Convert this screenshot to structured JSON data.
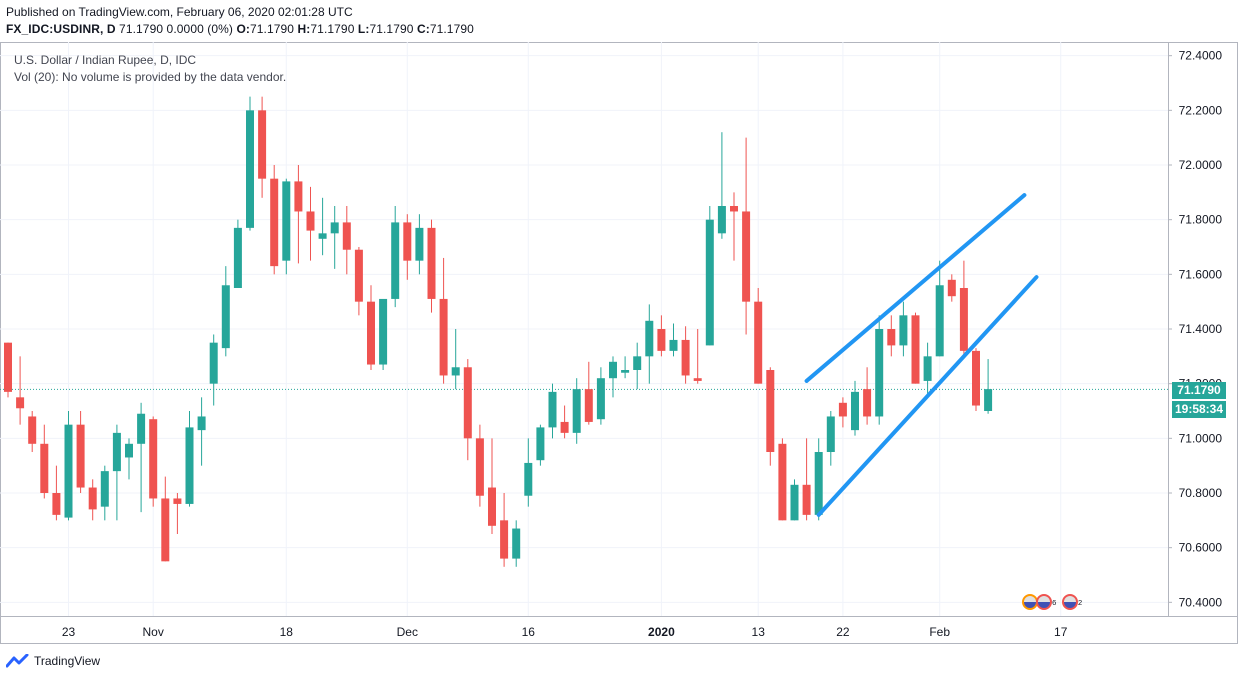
{
  "header": {
    "published": "Published on TradingView.com, February 06, 2020 02:01:28 UTC",
    "symbol": "FX_IDC:USDINR, D",
    "change": "71.1790 0.0000 (0%)",
    "o_label": "O:",
    "o": "71.1790",
    "h_label": "H:",
    "h": "71.1790",
    "l_label": "L:",
    "l": "71.1790",
    "c_label": "C:",
    "c": "71.1790"
  },
  "legend": {
    "title": "U.S. Dollar / Indian Rupee, D, IDC",
    "volume": "Vol (20): No volume is provided by the data vendor."
  },
  "price_tag": "71.1790",
  "countdown": "19:58:34",
  "footer": {
    "brand": "TradingView"
  },
  "events": [
    {
      "count_a": "5",
      "count_b": "6"
    },
    {
      "count_a": "2"
    }
  ],
  "colors": {
    "up": "#26a69a",
    "down": "#ef5350",
    "trendline": "#2196f3",
    "grid": "#f0f3fa"
  },
  "chart_data": {
    "type": "candlestick",
    "y_axis": {
      "min": 70.35,
      "max": 72.45,
      "ticks": [
        "70.4000",
        "70.6000",
        "70.8000",
        "71.0000",
        "71.2000",
        "71.4000",
        "71.6000",
        "71.8000",
        "72.0000",
        "72.2000",
        "72.4000"
      ],
      "position": "right"
    },
    "x_axis": {
      "ticks": [
        {
          "label": "23",
          "date": "2019-10-23"
        },
        {
          "label": "Nov",
          "date": "2019-11-01"
        },
        {
          "label": "18",
          "date": "2019-11-18"
        },
        {
          "label": "Dec",
          "date": "2019-12-02"
        },
        {
          "label": "16",
          "date": "2019-12-16"
        },
        {
          "label": "2020",
          "date": "2020-01-01"
        },
        {
          "label": "13",
          "date": "2020-01-13"
        },
        {
          "label": "22",
          "date": "2020-01-22"
        },
        {
          "label": "Feb",
          "date": "2020-02-03"
        },
        {
          "label": "17",
          "date": "2020-02-17"
        }
      ]
    },
    "last_price": 71.179,
    "grid": true,
    "candles": [
      {
        "d": "2019-10-16",
        "o": 71.35,
        "h": 71.35,
        "l": 71.15,
        "c": 71.17
      },
      {
        "d": "2019-10-17",
        "o": 71.15,
        "h": 71.3,
        "l": 71.05,
        "c": 71.11
      },
      {
        "d": "2019-10-18",
        "o": 71.08,
        "h": 71.1,
        "l": 70.95,
        "c": 70.98
      },
      {
        "d": "2019-10-21",
        "o": 70.98,
        "h": 71.05,
        "l": 70.78,
        "c": 70.8
      },
      {
        "d": "2019-10-22",
        "o": 70.8,
        "h": 70.9,
        "l": 70.7,
        "c": 70.72
      },
      {
        "d": "2019-10-23",
        "o": 70.71,
        "h": 71.1,
        "l": 70.7,
        "c": 71.05
      },
      {
        "d": "2019-10-24",
        "o": 71.05,
        "h": 71.1,
        "l": 70.8,
        "c": 70.82
      },
      {
        "d": "2019-10-25",
        "o": 70.82,
        "h": 70.85,
        "l": 70.7,
        "c": 70.74
      },
      {
        "d": "2019-10-28",
        "o": 70.75,
        "h": 70.9,
        "l": 70.7,
        "c": 70.88
      },
      {
        "d": "2019-10-29",
        "o": 70.88,
        "h": 71.05,
        "l": 70.7,
        "c": 71.02
      },
      {
        "d": "2019-10-30",
        "o": 70.93,
        "h": 71.0,
        "l": 70.85,
        "c": 70.98
      },
      {
        "d": "2019-10-31",
        "o": 70.98,
        "h": 71.13,
        "l": 70.73,
        "c": 71.09
      },
      {
        "d": "2019-11-01",
        "o": 71.07,
        "h": 71.08,
        "l": 70.75,
        "c": 70.78
      },
      {
        "d": "2019-11-04",
        "o": 70.78,
        "h": 70.86,
        "l": 70.55,
        "c": 70.55
      },
      {
        "d": "2019-11-05",
        "o": 70.78,
        "h": 70.8,
        "l": 70.65,
        "c": 70.76
      },
      {
        "d": "2019-11-06",
        "o": 70.76,
        "h": 71.1,
        "l": 70.75,
        "c": 71.04
      },
      {
        "d": "2019-11-07",
        "o": 71.03,
        "h": 71.15,
        "l": 70.9,
        "c": 71.08
      },
      {
        "d": "2019-11-08",
        "o": 71.2,
        "h": 71.38,
        "l": 71.12,
        "c": 71.35
      },
      {
        "d": "2019-11-11",
        "o": 71.33,
        "h": 71.63,
        "l": 71.3,
        "c": 71.56
      },
      {
        "d": "2019-11-12",
        "o": 71.55,
        "h": 71.8,
        "l": 71.55,
        "c": 71.77
      },
      {
        "d": "2019-11-13",
        "o": 71.77,
        "h": 72.25,
        "l": 71.76,
        "c": 72.2
      },
      {
        "d": "2019-11-14",
        "o": 72.2,
        "h": 72.25,
        "l": 71.88,
        "c": 71.95
      },
      {
        "d": "2019-11-15",
        "o": 71.95,
        "h": 72.0,
        "l": 71.6,
        "c": 71.63
      },
      {
        "d": "2019-11-18",
        "o": 71.65,
        "h": 71.95,
        "l": 71.6,
        "c": 71.94
      },
      {
        "d": "2019-11-19",
        "o": 71.94,
        "h": 72.0,
        "l": 71.64,
        "c": 71.83
      },
      {
        "d": "2019-11-20",
        "o": 71.83,
        "h": 71.92,
        "l": 71.65,
        "c": 71.76
      },
      {
        "d": "2019-11-21",
        "o": 71.73,
        "h": 71.88,
        "l": 71.67,
        "c": 71.75
      },
      {
        "d": "2019-11-22",
        "o": 71.75,
        "h": 71.85,
        "l": 71.62,
        "c": 71.79
      },
      {
        "d": "2019-11-25",
        "o": 71.79,
        "h": 71.85,
        "l": 71.6,
        "c": 71.69
      },
      {
        "d": "2019-11-26",
        "o": 71.69,
        "h": 71.7,
        "l": 71.45,
        "c": 71.5
      },
      {
        "d": "2019-11-27",
        "o": 71.5,
        "h": 71.56,
        "l": 71.25,
        "c": 71.27
      },
      {
        "d": "2019-11-28",
        "o": 71.27,
        "h": 71.5,
        "l": 71.25,
        "c": 71.51
      },
      {
        "d": "2019-11-29",
        "o": 71.51,
        "h": 71.85,
        "l": 71.48,
        "c": 71.79
      },
      {
        "d": "2019-12-02",
        "o": 71.79,
        "h": 71.82,
        "l": 71.58,
        "c": 71.65
      },
      {
        "d": "2019-12-03",
        "o": 71.65,
        "h": 71.82,
        "l": 71.6,
        "c": 71.77
      },
      {
        "d": "2019-12-04",
        "o": 71.77,
        "h": 71.8,
        "l": 71.46,
        "c": 71.51
      },
      {
        "d": "2019-12-05",
        "o": 71.51,
        "h": 71.66,
        "l": 71.2,
        "c": 71.23
      },
      {
        "d": "2019-12-06",
        "o": 71.23,
        "h": 71.4,
        "l": 71.18,
        "c": 71.26
      },
      {
        "d": "2019-12-09",
        "o": 71.26,
        "h": 71.29,
        "l": 70.92,
        "c": 71.0
      },
      {
        "d": "2019-12-10",
        "o": 71.0,
        "h": 71.05,
        "l": 70.75,
        "c": 70.79
      },
      {
        "d": "2019-12-11",
        "o": 70.82,
        "h": 71.0,
        "l": 70.65,
        "c": 70.68
      },
      {
        "d": "2019-12-12",
        "o": 70.7,
        "h": 70.8,
        "l": 70.53,
        "c": 70.56
      },
      {
        "d": "2019-12-13",
        "o": 70.56,
        "h": 70.7,
        "l": 70.53,
        "c": 70.67
      },
      {
        "d": "2019-12-16",
        "o": 70.79,
        "h": 71.0,
        "l": 70.75,
        "c": 70.91
      },
      {
        "d": "2019-12-17",
        "o": 70.92,
        "h": 71.05,
        "l": 70.9,
        "c": 71.04
      },
      {
        "d": "2019-12-18",
        "o": 71.04,
        "h": 71.2,
        "l": 71.0,
        "c": 71.17
      },
      {
        "d": "2019-12-19",
        "o": 71.06,
        "h": 71.12,
        "l": 71.0,
        "c": 71.02
      },
      {
        "d": "2019-12-20",
        "o": 71.02,
        "h": 71.22,
        "l": 70.98,
        "c": 71.18
      },
      {
        "d": "2019-12-23",
        "o": 71.18,
        "h": 71.28,
        "l": 71.05,
        "c": 71.06
      },
      {
        "d": "2019-12-24",
        "o": 71.07,
        "h": 71.26,
        "l": 71.05,
        "c": 71.22
      },
      {
        "d": "2019-12-26",
        "o": 71.22,
        "h": 71.3,
        "l": 71.15,
        "c": 71.28
      },
      {
        "d": "2019-12-27",
        "o": 71.24,
        "h": 71.3,
        "l": 71.22,
        "c": 71.25
      },
      {
        "d": "2019-12-30",
        "o": 71.25,
        "h": 71.35,
        "l": 71.18,
        "c": 71.3
      },
      {
        "d": "2019-12-31",
        "o": 71.3,
        "h": 71.49,
        "l": 71.2,
        "c": 71.43
      },
      {
        "d": "2020-01-01",
        "o": 71.4,
        "h": 71.45,
        "l": 71.3,
        "c": 71.32
      },
      {
        "d": "2020-01-02",
        "o": 71.32,
        "h": 71.42,
        "l": 71.3,
        "c": 71.36
      },
      {
        "d": "2020-01-03",
        "o": 71.36,
        "h": 71.41,
        "l": 71.2,
        "c": 71.23
      },
      {
        "d": "2020-01-06",
        "o": 71.22,
        "h": 71.4,
        "l": 71.2,
        "c": 71.21
      },
      {
        "d": "2020-01-07",
        "o": 71.34,
        "h": 71.85,
        "l": 71.34,
        "c": 71.8
      },
      {
        "d": "2020-01-08",
        "o": 71.75,
        "h": 72.12,
        "l": 71.73,
        "c": 71.85
      },
      {
        "d": "2020-01-09",
        "o": 71.85,
        "h": 71.9,
        "l": 71.65,
        "c": 71.83
      },
      {
        "d": "2020-01-10",
        "o": 71.83,
        "h": 72.1,
        "l": 71.38,
        "c": 71.5
      },
      {
        "d": "2020-01-13",
        "o": 71.5,
        "h": 71.55,
        "l": 71.2,
        "c": 71.2
      },
      {
        "d": "2020-01-14",
        "o": 71.25,
        "h": 71.26,
        "l": 70.9,
        "c": 70.95
      },
      {
        "d": "2020-01-15",
        "o": 70.98,
        "h": 71.0,
        "l": 70.7,
        "c": 70.7
      },
      {
        "d": "2020-01-16",
        "o": 70.7,
        "h": 70.85,
        "l": 70.7,
        "c": 70.83
      },
      {
        "d": "2020-01-17",
        "o": 70.83,
        "h": 71.0,
        "l": 70.7,
        "c": 70.72
      },
      {
        "d": "2020-01-20",
        "o": 70.72,
        "h": 71.0,
        "l": 70.7,
        "c": 70.95
      },
      {
        "d": "2020-01-21",
        "o": 70.95,
        "h": 71.1,
        "l": 70.9,
        "c": 71.08
      },
      {
        "d": "2020-01-22",
        "o": 71.13,
        "h": 71.15,
        "l": 71.04,
        "c": 71.08
      },
      {
        "d": "2020-01-23",
        "o": 71.03,
        "h": 71.21,
        "l": 71.01,
        "c": 71.17
      },
      {
        "d": "2020-01-24",
        "o": 71.18,
        "h": 71.26,
        "l": 71.05,
        "c": 71.08
      },
      {
        "d": "2020-01-27",
        "o": 71.08,
        "h": 71.45,
        "l": 71.05,
        "c": 71.4
      },
      {
        "d": "2020-01-28",
        "o": 71.4,
        "h": 71.45,
        "l": 71.3,
        "c": 71.34
      },
      {
        "d": "2020-01-29",
        "o": 71.34,
        "h": 71.5,
        "l": 71.3,
        "c": 71.45
      },
      {
        "d": "2020-01-30",
        "o": 71.45,
        "h": 71.46,
        "l": 71.2,
        "c": 71.2
      },
      {
        "d": "2020-01-31",
        "o": 71.21,
        "h": 71.35,
        "l": 71.15,
        "c": 71.3
      },
      {
        "d": "2020-02-03",
        "o": 71.3,
        "h": 71.65,
        "l": 71.3,
        "c": 71.56
      },
      {
        "d": "2020-02-04",
        "o": 71.58,
        "h": 71.6,
        "l": 71.5,
        "c": 71.52
      },
      {
        "d": "2020-02-05",
        "o": 71.55,
        "h": 71.65,
        "l": 71.3,
        "c": 71.32
      },
      {
        "d": "2020-02-06",
        "o": 71.32,
        "h": 71.33,
        "l": 71.1,
        "c": 71.12
      },
      {
        "d": "2020-02-07",
        "o": 71.1,
        "h": 71.29,
        "l": 71.09,
        "c": 71.18
      }
    ],
    "trendlines": [
      {
        "from": {
          "d": "2020-01-17",
          "p": 71.21
        },
        "to": {
          "d": "2020-02-12",
          "p": 71.89
        }
      },
      {
        "from": {
          "d": "2020-01-20",
          "p": 70.72
        },
        "to": {
          "d": "2020-02-13",
          "p": 71.59
        }
      }
    ]
  }
}
